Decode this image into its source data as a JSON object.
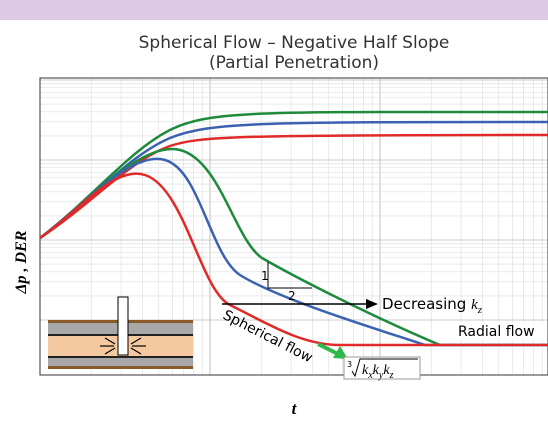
{
  "title": "Spherical Flow – Negative Half Slope",
  "subtitle": "(Partial Penetration)",
  "y_label": "Δp , DER",
  "x_label": "t",
  "slope_triangle": {
    "rise": "1",
    "run": "2"
  },
  "decreasing": {
    "text": "Decreasing ",
    "symbol": "k",
    "subscript": "z"
  },
  "radial_label": "Radial flow",
  "spherical_label": "Spherical flow",
  "formula": {
    "index": "3",
    "terms": [
      {
        "symbol": "k",
        "subscript": "x"
      },
      {
        "symbol": "k",
        "subscript": "y"
      },
      {
        "symbol": "k",
        "subscript": "z"
      }
    ]
  }
}
